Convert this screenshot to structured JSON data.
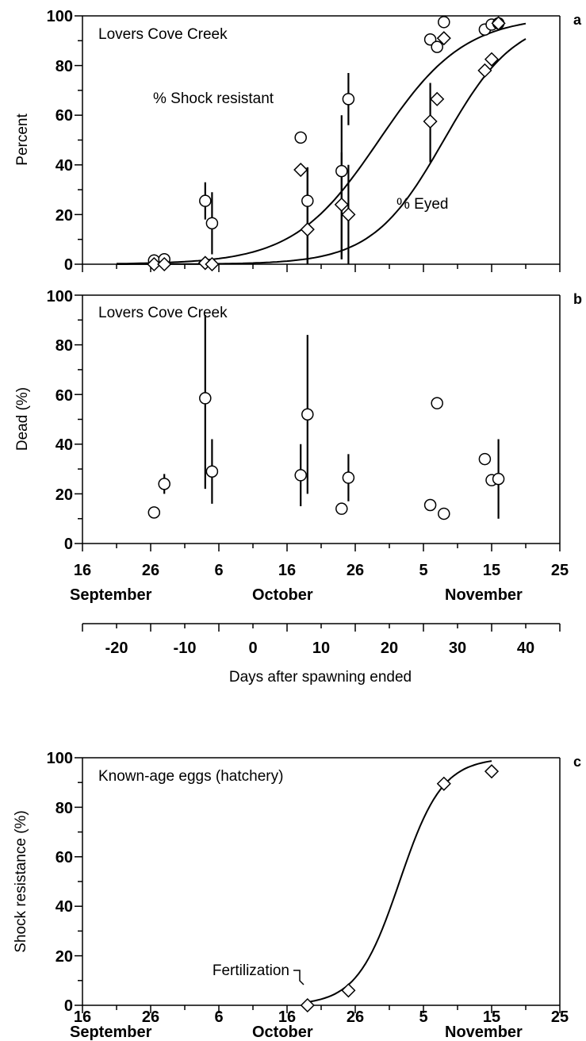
{
  "chart_data": [
    {
      "type": "scatter",
      "panel_letter": "a",
      "title": "Lovers Cove Creek",
      "ylabel": "Percent",
      "ylim": [
        0,
        100
      ],
      "yticks": [
        "0",
        "20",
        "40",
        "60",
        "80",
        "100"
      ],
      "x_date_axis": {
        "ticks": [
          "16",
          "26",
          "6",
          "16",
          "26",
          "5",
          "15",
          "25"
        ]
      },
      "series": [
        {
          "name": "% Shock resistant",
          "marker": "circle",
          "points": [
            {
              "day": -14.5,
              "value": 1.5
            },
            {
              "day": -13,
              "value": 2
            },
            {
              "day": -7,
              "value": 25.5,
              "err": [
                18,
                33
              ]
            },
            {
              "day": -6,
              "value": 16.5,
              "err": [
                4,
                29
              ]
            },
            {
              "day": 7,
              "value": 51
            },
            {
              "day": 8,
              "value": 25.5,
              "err": [
                0,
                39
              ]
            },
            {
              "day": 13,
              "value": 37.5,
              "err": [
                2,
                60
              ]
            },
            {
              "day": 14,
              "value": 66.5,
              "err": [
                56,
                77
              ]
            },
            {
              "day": 26,
              "value": 90.5
            },
            {
              "day": 27,
              "value": 87.5
            },
            {
              "day": 28,
              "value": 97.5
            },
            {
              "day": 34,
              "value": 94.5
            },
            {
              "day": 35,
              "value": 96.5
            },
            {
              "day": 36,
              "value": 97
            }
          ],
          "fit": {
            "midpoint": 18.5,
            "slope": 0.16
          }
        },
        {
          "name": "% Eyed",
          "marker": "diamond",
          "points": [
            {
              "day": -14.5,
              "value": 0
            },
            {
              "day": -13,
              "value": 0
            },
            {
              "day": -7,
              "value": 0.5
            },
            {
              "day": -6,
              "value": 0
            },
            {
              "day": 7,
              "value": 38
            },
            {
              "day": 8,
              "value": 14,
              "err": [
                0,
                39
              ]
            },
            {
              "day": 13,
              "value": 24,
              "err": [
                2,
                45
              ]
            },
            {
              "day": 14,
              "value": 20,
              "err": [
                0,
                40
              ]
            },
            {
              "day": 26,
              "value": 57.5,
              "err": [
                41,
                73
              ]
            },
            {
              "day": 27,
              "value": 66.5
            },
            {
              "day": 28,
              "value": 91
            },
            {
              "day": 34,
              "value": 78
            },
            {
              "day": 35,
              "value": 82.5
            },
            {
              "day": 36,
              "value": 97
            }
          ],
          "fit": {
            "midpoint": 28,
            "slope": 0.19
          }
        }
      ]
    },
    {
      "type": "scatter",
      "panel_letter": "b",
      "title": "Lovers Cove Creek",
      "ylabel": "Dead (%)",
      "ylim": [
        0,
        100
      ],
      "yticks": [
        "0",
        "20",
        "40",
        "60",
        "80",
        "100"
      ],
      "x_date_axis": {
        "ticks": [
          "16",
          "26",
          "6",
          "16",
          "26",
          "5",
          "15",
          "25"
        ],
        "months": [
          "September",
          "October",
          "November"
        ]
      },
      "x_days_axis": {
        "label": "Days after spawning ended",
        "ticks": [
          "-20",
          "-10",
          "0",
          "10",
          "20",
          "30",
          "40"
        ]
      },
      "series": [
        {
          "marker": "circle",
          "points": [
            {
              "day": -14.5,
              "value": 12.5
            },
            {
              "day": -13,
              "value": 24,
              "err": [
                20,
                28
              ]
            },
            {
              "day": -7,
              "value": 58.5,
              "err": [
                22,
                92
              ]
            },
            {
              "day": -6,
              "value": 29,
              "err": [
                16,
                42
              ]
            },
            {
              "day": 7,
              "value": 27.5,
              "err": [
                15,
                40
              ]
            },
            {
              "day": 8,
              "value": 52,
              "err": [
                20,
                84
              ]
            },
            {
              "day": 13,
              "value": 14
            },
            {
              "day": 14,
              "value": 26.5,
              "err": [
                17,
                36
              ]
            },
            {
              "day": 26,
              "value": 15.5
            },
            {
              "day": 27,
              "value": 56.5
            },
            {
              "day": 28,
              "value": 12
            },
            {
              "day": 34,
              "value": 34
            },
            {
              "day": 35,
              "value": 25.5
            },
            {
              "day": 36,
              "value": 26,
              "err": [
                10,
                42
              ]
            }
          ]
        }
      ]
    },
    {
      "type": "line",
      "panel_letter": "c",
      "title": "Known-age eggs (hatchery)",
      "ylabel": "Shock resistance (%)",
      "ylim": [
        0,
        100
      ],
      "yticks": [
        "0",
        "20",
        "40",
        "60",
        "80",
        "100"
      ],
      "x_date_axis": {
        "ticks": [
          "16",
          "26",
          "6",
          "16",
          "26",
          "5",
          "15",
          "25"
        ],
        "months": [
          "September",
          "October",
          "November"
        ]
      },
      "annotation": "Fertilization",
      "series": [
        {
          "marker": "diamond",
          "points": [
            {
              "day": 8,
              "value": 0
            },
            {
              "day": 14,
              "value": 6
            },
            {
              "day": 28,
              "value": 89.5
            },
            {
              "day": 35,
              "value": 94.5
            }
          ]
        }
      ]
    }
  ]
}
